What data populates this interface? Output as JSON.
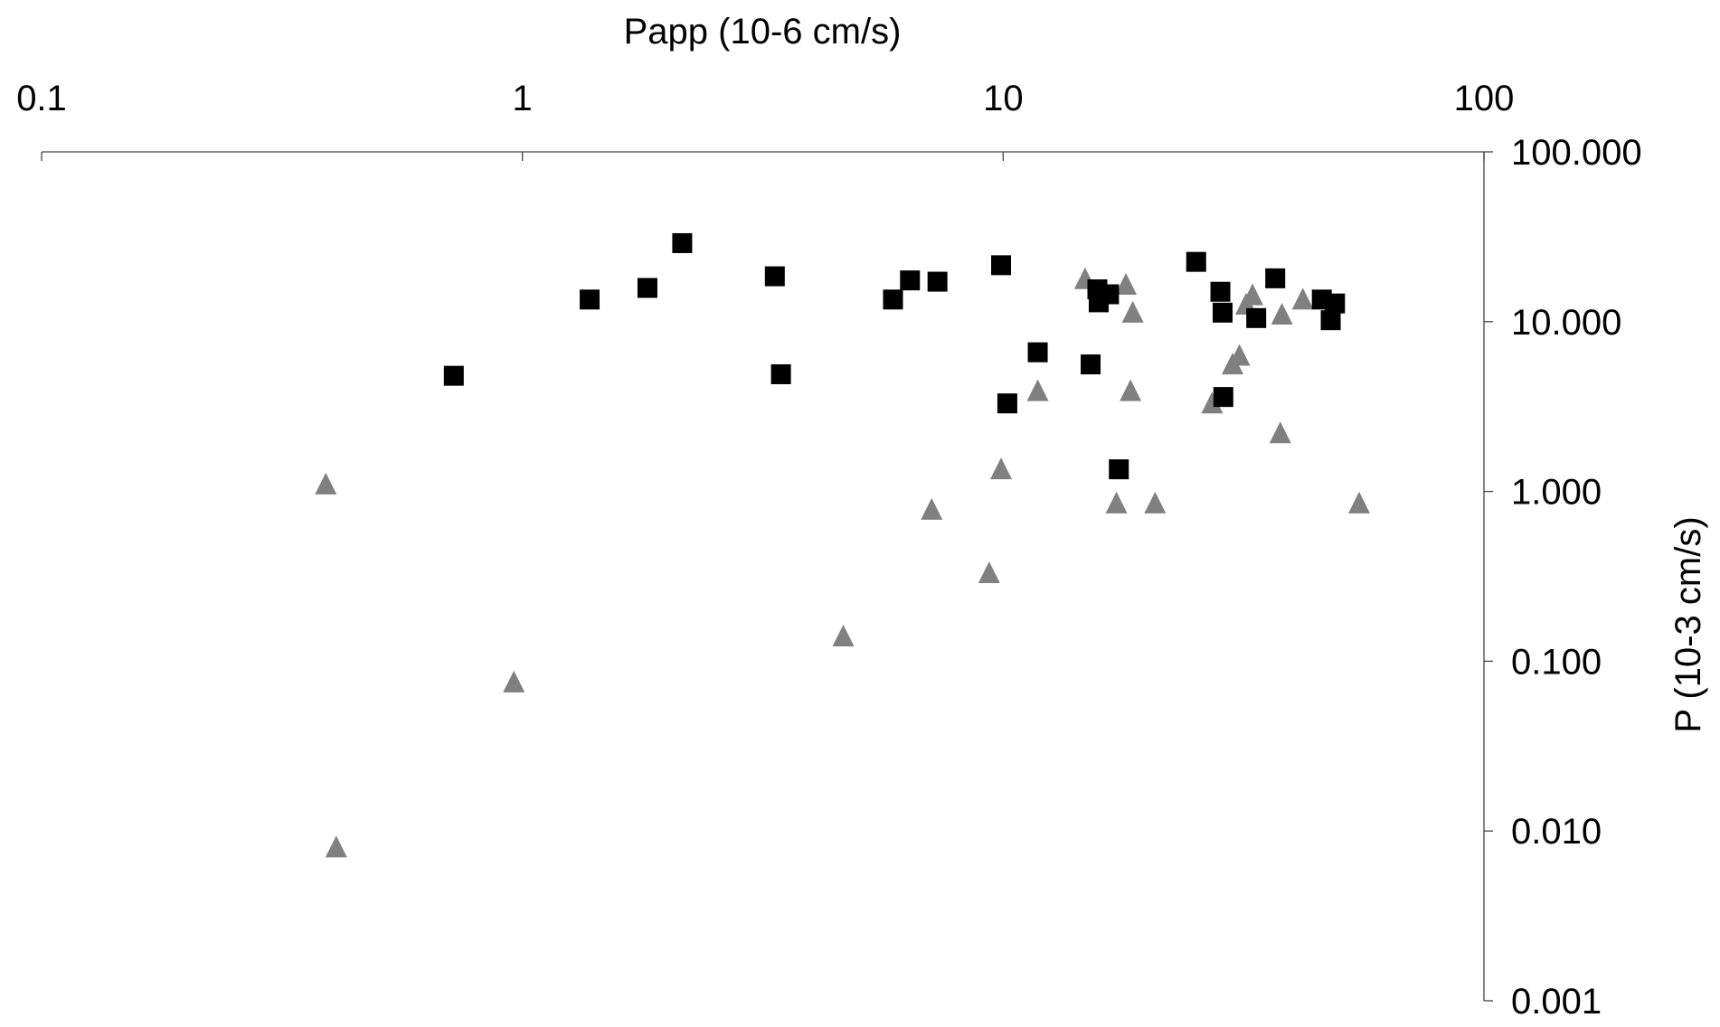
{
  "chart_data": {
    "type": "scatter",
    "title": "",
    "xlabel": "Papp (10-6 cm/s)",
    "ylabel": "P (10-3 cm/s)",
    "x_scale": "log",
    "y_scale": "log",
    "xlim": [
      0.1,
      100
    ],
    "ylim": [
      0.001,
      100
    ],
    "x_tick_labels": [
      "0.1",
      "1",
      "10",
      "100"
    ],
    "y_tick_labels": [
      "100.000",
      "10.000",
      "1.000",
      "0.100",
      "0.010",
      "0.001"
    ],
    "x_axis_position": "top",
    "y_axis_position": "right",
    "grid": false,
    "legend": "none",
    "series": [
      {
        "marker": "square",
        "color": "#000000",
        "points": [
          {
            "x": 0.72,
            "y": 4.8
          },
          {
            "x": 1.38,
            "y": 13.5
          },
          {
            "x": 1.82,
            "y": 15.8
          },
          {
            "x": 2.15,
            "y": 29.0
          },
          {
            "x": 3.35,
            "y": 18.5
          },
          {
            "x": 3.45,
            "y": 4.9
          },
          {
            "x": 5.9,
            "y": 13.5
          },
          {
            "x": 6.4,
            "y": 17.5
          },
          {
            "x": 7.3,
            "y": 17.2
          },
          {
            "x": 9.9,
            "y": 21.5
          },
          {
            "x": 10.2,
            "y": 3.3
          },
          {
            "x": 11.8,
            "y": 6.6
          },
          {
            "x": 15.2,
            "y": 5.6
          },
          {
            "x": 15.7,
            "y": 15.5
          },
          {
            "x": 15.8,
            "y": 13.0
          },
          {
            "x": 16.6,
            "y": 14.5
          },
          {
            "x": 17.4,
            "y": 1.35
          },
          {
            "x": 25.2,
            "y": 22.5
          },
          {
            "x": 28.3,
            "y": 15.0
          },
          {
            "x": 28.6,
            "y": 11.3
          },
          {
            "x": 28.7,
            "y": 3.6
          },
          {
            "x": 33.6,
            "y": 10.5
          },
          {
            "x": 36.8,
            "y": 18.0
          },
          {
            "x": 46.0,
            "y": 13.5
          },
          {
            "x": 48.0,
            "y": 10.2
          },
          {
            "x": 49.0,
            "y": 12.8
          }
        ]
      },
      {
        "marker": "triangle",
        "color": "#808080",
        "points": [
          {
            "x": 0.39,
            "y": 1.1
          },
          {
            "x": 0.41,
            "y": 0.008
          },
          {
            "x": 0.96,
            "y": 0.075
          },
          {
            "x": 4.65,
            "y": 0.14
          },
          {
            "x": 7.1,
            "y": 0.78
          },
          {
            "x": 9.35,
            "y": 0.33
          },
          {
            "x": 9.9,
            "y": 1.35
          },
          {
            "x": 11.8,
            "y": 3.9
          },
          {
            "x": 14.8,
            "y": 17.8
          },
          {
            "x": 17.2,
            "y": 0.85
          },
          {
            "x": 18.0,
            "y": 16.5
          },
          {
            "x": 18.4,
            "y": 3.9
          },
          {
            "x": 18.6,
            "y": 11.3
          },
          {
            "x": 20.7,
            "y": 0.85
          },
          {
            "x": 27.2,
            "y": 3.3
          },
          {
            "x": 30.0,
            "y": 5.6
          },
          {
            "x": 31.0,
            "y": 6.3
          },
          {
            "x": 32.0,
            "y": 12.6
          },
          {
            "x": 33.0,
            "y": 14.3
          },
          {
            "x": 37.7,
            "y": 2.2
          },
          {
            "x": 38.0,
            "y": 11.0
          },
          {
            "x": 42.0,
            "y": 13.5
          },
          {
            "x": 55.0,
            "y": 0.85
          }
        ]
      }
    ]
  }
}
